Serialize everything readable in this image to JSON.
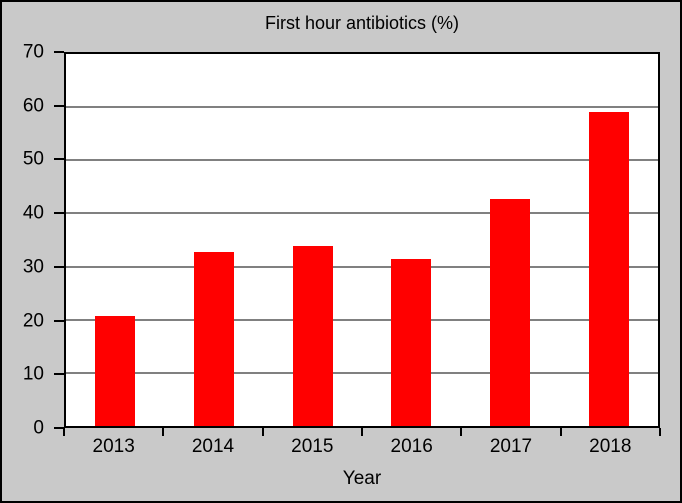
{
  "colors": {
    "background": "#c9c9c9",
    "plot_bg": "#ffffff",
    "bar": "#ff0000",
    "gridline": "#808080",
    "axis": "#000000"
  },
  "chart_data": {
    "type": "bar",
    "title": "First hour antibiotics (%)",
    "categories": [
      "2013",
      "2014",
      "2015",
      "2016",
      "2017",
      "2018"
    ],
    "values": [
      20.7,
      32.7,
      33.9,
      31.4,
      42.7,
      59
    ],
    "xlabel": "Year",
    "ylabel": "",
    "ylim": [
      0,
      70
    ],
    "yticks": [
      0,
      10,
      20,
      30,
      40,
      50,
      60,
      70
    ],
    "grid": true,
    "legend": false,
    "bar_color": "#ff0000",
    "plot_background": "#ffffff",
    "figure_background": "#c9c9c9"
  }
}
